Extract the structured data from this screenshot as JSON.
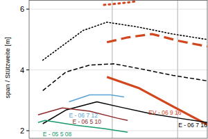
{
  "chart_data": {
    "type": "line",
    "y_label": "span / Stützweite [m]",
    "xlim": [
      0,
      3
    ],
    "xticks": [
      1.4,
      2.5
    ],
    "ylim": [
      1.75,
      6.3
    ],
    "yticks": [
      2,
      4,
      6
    ],
    "grid": true,
    "tick_labels": "y",
    "series": [
      {
        "color": "#d2461e",
        "line_style": "dotted",
        "x": [
          1.26,
          1.49,
          1.78
        ],
        "values": [
          6.14,
          6.18,
          6.25
        ]
      },
      {
        "color": "#000000",
        "line_style": "dotted",
        "x": [
          0.23,
          0.91,
          1.31,
          1.84,
          2.42,
          3.0
        ],
        "values": [
          4.32,
          5.3,
          5.57,
          5.41,
          5.18,
          5.0
        ]
      },
      {
        "color": "#d2461e",
        "line_style": "dashed",
        "x": [
          1.31,
          1.66,
          2.07,
          2.53,
          3.0
        ],
        "values": [
          4.91,
          5.07,
          5.18,
          4.95,
          4.77
        ]
      },
      {
        "color": "#000000",
        "line_style": "dashed",
        "x": [
          0.23,
          0.62,
          1.02,
          1.43,
          1.84,
          2.42,
          3.0
        ],
        "values": [
          3.32,
          3.93,
          4.16,
          4.2,
          4.05,
          3.82,
          3.64
        ]
      },
      {
        "name": "EV - 06 9 16",
        "color": "#d2461e",
        "line_style": "solid",
        "x": [
          1.31,
          1.84,
          2.42,
          3.0
        ],
        "values": [
          3.77,
          3.41,
          2.8,
          2.2
        ]
      },
      {
        "name": "E - 06 7 16",
        "color": "#000000",
        "line_style": "solid",
        "x": [
          0.23,
          0.62,
          1.14,
          1.55,
          2.07,
          2.53,
          3.0
        ],
        "values": [
          2.23,
          2.68,
          2.95,
          2.77,
          2.55,
          2.41,
          2.27
        ]
      },
      {
        "name": "E - 06 7 12",
        "color": "#5aa3d6",
        "line_style": "solid",
        "x": [
          0.67,
          1.02,
          1.37,
          1.6
        ],
        "values": [
          2.95,
          3.18,
          3.18,
          3.11
        ]
      },
      {
        "name": "E - 06 5 10",
        "color": "#8c2a2a",
        "line_style": "solid",
        "x": [
          0.15,
          0.56,
          1.02,
          1.49,
          1.66
        ],
        "values": [
          2.52,
          2.75,
          2.64,
          2.41,
          2.34
        ]
      },
      {
        "name": "E - 05 5 08",
        "color": "#1a9a6a",
        "line_style": "solid",
        "x": [
          0.15,
          0.27,
          0.79,
          1.26,
          1.66
        ],
        "values": [
          2.27,
          2.34,
          2.18,
          2.07,
          1.95
        ]
      }
    ]
  }
}
